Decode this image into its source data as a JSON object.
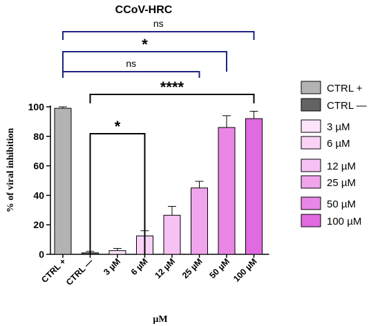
{
  "chart_data": {
    "type": "bar",
    "title": "CCoV-HRC",
    "xlabel": "µM",
    "ylabel": "% of viral inhibition",
    "ylim": [
      0,
      100
    ],
    "yticks": [
      "0",
      "20",
      "40",
      "60",
      "80",
      "100"
    ],
    "categories": [
      "CTRL +",
      "CTRL —",
      "3 µM",
      "6 µM",
      "12 µM",
      "25 µM",
      "50 µM",
      "100 µM"
    ],
    "values": [
      99,
      1,
      2.5,
      12.5,
      26.5,
      45,
      86,
      92
    ],
    "errors": [
      1,
      1,
      1.5,
      3.5,
      6,
      4.5,
      8,
      5
    ],
    "colors": [
      "#b3b3b3",
      "#636363",
      "#fce3fa",
      "#f9d2f6",
      "#f6c1f3",
      "#efa4ec",
      "#e987e6",
      "#e06adf"
    ],
    "legend": {
      "position": "right",
      "entries": [
        "CTRL +",
        "CTRL —",
        "3 µM",
        "6 µM",
        "12 µM",
        "25 µM",
        "50 µM",
        "100 µM"
      ]
    },
    "significance": [
      {
        "from": "CTRL +",
        "to": "100 µM",
        "label": "ns",
        "color": "#1a237e"
      },
      {
        "from": "CTRL +",
        "to": "50 µM",
        "label": "*",
        "color": "#1a237e"
      },
      {
        "from": "CTRL +",
        "to": "25 µM",
        "label": "ns",
        "color": "#1a237e"
      },
      {
        "from": "CTRL —",
        "to": "100 µM",
        "label": "****",
        "color": "#000000"
      },
      {
        "from": "CTRL —",
        "to": "6 µM",
        "label": "*",
        "color": "#000000"
      }
    ]
  }
}
